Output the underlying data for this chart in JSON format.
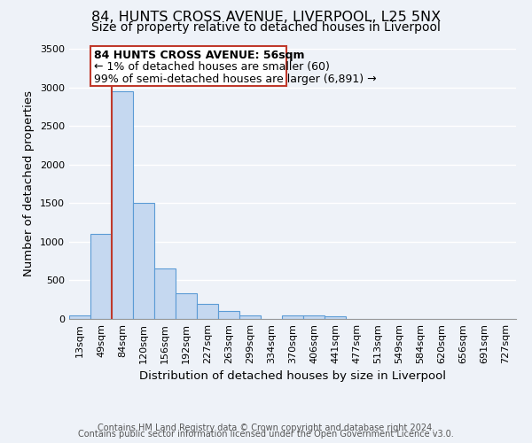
{
  "title": "84, HUNTS CROSS AVENUE, LIVERPOOL, L25 5NX",
  "subtitle": "Size of property relative to detached houses in Liverpool",
  "xlabel": "Distribution of detached houses by size in Liverpool",
  "ylabel": "Number of detached properties",
  "bar_labels": [
    "13sqm",
    "49sqm",
    "84sqm",
    "120sqm",
    "156sqm",
    "192sqm",
    "227sqm",
    "263sqm",
    "299sqm",
    "334sqm",
    "370sqm",
    "406sqm",
    "441sqm",
    "477sqm",
    "513sqm",
    "549sqm",
    "584sqm",
    "620sqm",
    "656sqm",
    "691sqm",
    "727sqm"
  ],
  "bar_values": [
    50,
    1100,
    2950,
    1500,
    650,
    330,
    200,
    100,
    50,
    0,
    50,
    50,
    30,
    5,
    0,
    0,
    0,
    0,
    0,
    0,
    0
  ],
  "bar_color": "#c5d8f0",
  "bar_edge_color": "#5b9bd5",
  "ylim": [
    0,
    3500
  ],
  "yticks": [
    0,
    500,
    1000,
    1500,
    2000,
    2500,
    3000,
    3500
  ],
  "vline_color": "#c0392b",
  "annotation_line1": "84 HUNTS CROSS AVENUE: 56sqm",
  "annotation_line2": "← 1% of detached houses are smaller (60)",
  "annotation_line3": "99% of semi-detached houses are larger (6,891) →",
  "box_edge_color": "#c0392b",
  "footer_line1": "Contains HM Land Registry data © Crown copyright and database right 2024.",
  "footer_line2": "Contains public sector information licensed under the Open Government Licence v3.0.",
  "background_color": "#eef2f8",
  "title_fontsize": 11.5,
  "subtitle_fontsize": 10,
  "axis_label_fontsize": 9.5,
  "tick_fontsize": 8,
  "annotation_fontsize": 9,
  "footer_fontsize": 7
}
